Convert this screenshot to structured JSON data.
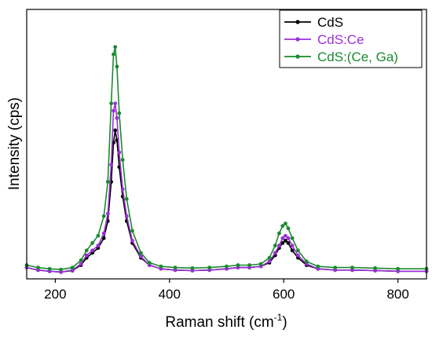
{
  "chart_data": {
    "type": "line",
    "title": "",
    "xlabel": "Raman shift (cm",
    "xlabel_sup": "-1",
    "xlabel_close": ")",
    "ylabel": "Intensity (cps)",
    "xlim": [
      150,
      850
    ],
    "ylim": [
      0,
      100
    ],
    "y_ticks_labeled": false,
    "grid": false,
    "legend_position": "top-right",
    "x_ticks": [
      {
        "value": 200,
        "label": "200"
      },
      {
        "value": 400,
        "label": "400"
      },
      {
        "value": 600,
        "label": "600"
      },
      {
        "value": 800,
        "label": "800"
      }
    ],
    "series": [
      {
        "name": "CdS",
        "color": "#000000",
        "x": [
          150,
          170,
          190,
          210,
          230,
          245,
          255,
          265,
          275,
          285,
          292,
          298,
          302,
          305,
          308,
          312,
          318,
          325,
          335,
          350,
          365,
          385,
          410,
          440,
          470,
          500,
          520,
          540,
          560,
          575,
          585,
          592,
          598,
          603,
          608,
          615,
          625,
          640,
          660,
          690,
          720,
          760,
          800,
          850
        ],
        "y": [
          3,
          2,
          1.5,
          1.2,
          1.8,
          4,
          7,
          9,
          11,
          15,
          22,
          38,
          54,
          59,
          55,
          44,
          32,
          22,
          13,
          7,
          4,
          2.5,
          2,
          1.8,
          2,
          2.5,
          3,
          3,
          3.5,
          5,
          8,
          11,
          13,
          14,
          13,
          10,
          7,
          4,
          2.5,
          2,
          2,
          1.8,
          1.5,
          1.5
        ]
      },
      {
        "name": "CdS:Ce",
        "color": "#9b30d9",
        "x": [
          150,
          170,
          190,
          210,
          230,
          245,
          255,
          265,
          275,
          285,
          292,
          298,
          302,
          305,
          308,
          312,
          318,
          325,
          335,
          350,
          365,
          385,
          410,
          440,
          470,
          500,
          520,
          540,
          560,
          575,
          585,
          592,
          598,
          603,
          608,
          615,
          625,
          640,
          660,
          690,
          720,
          760,
          800,
          850
        ],
        "y": [
          3,
          2,
          1.5,
          1.2,
          2,
          4.5,
          8,
          10,
          12,
          17,
          25,
          45,
          67,
          70,
          64,
          50,
          35,
          24,
          14,
          7.5,
          4,
          2.5,
          2,
          1.8,
          2,
          2.5,
          3,
          3,
          3.5,
          5.5,
          9,
          12,
          15,
          16,
          15,
          12,
          8,
          4.5,
          2.5,
          2,
          2,
          1.8,
          1.5,
          1.5
        ]
      },
      {
        "name": "CdS:(Ce, Ga)",
        "color": "#1a8a2e",
        "x": [
          150,
          170,
          190,
          210,
          230,
          245,
          255,
          265,
          275,
          285,
          292,
          298,
          302,
          305,
          308,
          312,
          318,
          325,
          335,
          350,
          365,
          385,
          410,
          440,
          470,
          500,
          520,
          540,
          560,
          575,
          585,
          592,
          598,
          603,
          608,
          615,
          625,
          640,
          660,
          690,
          720,
          760,
          800,
          850
        ],
        "y": [
          4,
          3,
          2.5,
          2.2,
          3,
          6,
          10,
          13,
          16,
          24,
          38,
          70,
          90,
          93,
          85,
          66,
          47,
          31,
          18,
          9,
          5,
          3.5,
          3,
          2.8,
          3,
          3.5,
          4,
          4,
          4.5,
          7,
          12,
          17,
          20,
          21,
          19,
          15,
          10,
          5.5,
          3.5,
          3,
          3,
          2.8,
          2.5,
          2.5
        ]
      }
    ]
  }
}
